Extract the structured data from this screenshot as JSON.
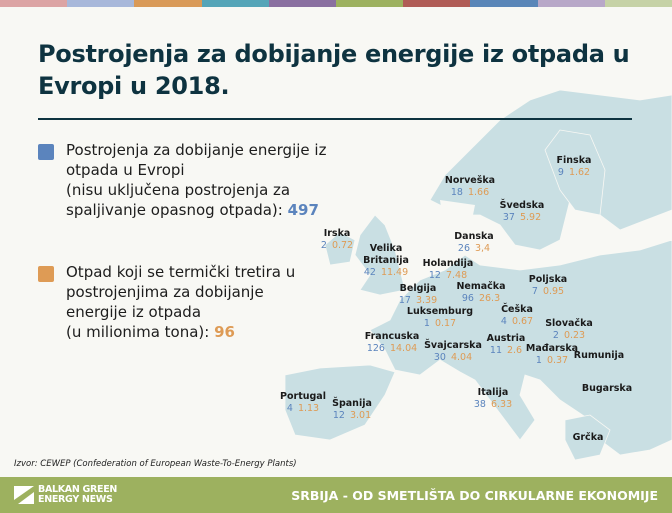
{
  "stripe_colors": [
    "#dca4a4",
    "#a8b8da",
    "#d99a58",
    "#55a5b8",
    "#8a70a0",
    "#9db15f",
    "#b05c56",
    "#5a86b8",
    "#b8a8c8",
    "#c6d2a6"
  ],
  "colors": {
    "plants": "#5b84bd",
    "waste": "#de9b55",
    "land": "#c9dfe3",
    "title": "#0e3340",
    "footer": "#9db15f"
  },
  "title": "Postrojenja za dobijanje energije iz otpada u Evropi u 2018.",
  "legend": [
    {
      "text": "Postrojenja za dobijanje energije iz otpada u Evropi",
      "note": "(nisu uključena postrojenja za spaljivanje opasnog otpada):",
      "total": "497",
      "color": "#5b84bd"
    },
    {
      "text": "Otpad koji se termički tretira u postrojenjima za dobijanje energije iz otpada",
      "note": "(u milionima tona):",
      "total": "96",
      "color": "#de9b55"
    }
  ],
  "countries": [
    {
      "name": "Finska",
      "plants": "9",
      "waste": "1.62"
    },
    {
      "name": "Norveška",
      "plants": "18",
      "waste": "1.66"
    },
    {
      "name": "Švedska",
      "plants": "37",
      "waste": "5.92"
    },
    {
      "name": "Irska",
      "plants": "2",
      "waste": "0.72"
    },
    {
      "name": "Danska",
      "plants": "26",
      "waste": "3,4"
    },
    {
      "name": "Velika Britanija",
      "plants": "42",
      "waste": "11.49"
    },
    {
      "name": "Holandija",
      "plants": "12",
      "waste": "7.48"
    },
    {
      "name": "Belgija",
      "plants": "17",
      "waste": "3.39"
    },
    {
      "name": "Nemačka",
      "plants": "96",
      "waste": "26.3"
    },
    {
      "name": "Poljska",
      "plants": "7",
      "waste": "0.95"
    },
    {
      "name": "Luksemburg",
      "plants": "1",
      "waste": "0.17"
    },
    {
      "name": "Češka",
      "plants": "4",
      "waste": "0.67"
    },
    {
      "name": "Slovačka",
      "plants": "2",
      "waste": "0.23"
    },
    {
      "name": "Francuska",
      "plants": "126",
      "waste": "14.04"
    },
    {
      "name": "Švajcarska",
      "plants": "30",
      "waste": "4.04"
    },
    {
      "name": "Austria",
      "plants": "11",
      "waste": "2.6"
    },
    {
      "name": "Mađarska",
      "plants": "1",
      "waste": "0.37"
    },
    {
      "name": "Rumunija"
    },
    {
      "name": "Portugal",
      "plants": "4",
      "waste": "1.13"
    },
    {
      "name": "Španija",
      "plants": "12",
      "waste": "3.01"
    },
    {
      "name": "Italija",
      "plants": "38",
      "waste": "6.33"
    },
    {
      "name": "Bugarska"
    },
    {
      "name": "Grčka"
    }
  ],
  "source": "Izvor: CEWEP (Confederation of European Waste-To-Energy Plants)",
  "footer": {
    "logo_line1": "BALKAN GREEN",
    "logo_line2": "ENERGY NEWS",
    "slogan": "SRBIJA - OD SMETLIŠTA DO CIRKULARNE EKONOMIJE"
  }
}
